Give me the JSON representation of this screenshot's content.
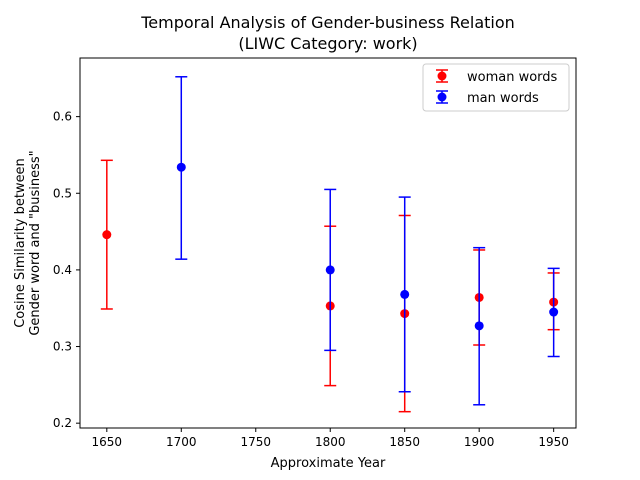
{
  "chart_data": {
    "type": "scatter",
    "title_line1": "Temporal Analysis of Gender-business Relation",
    "title_line2": "(LIWC Category: work)",
    "xlabel": "Approximate Year",
    "ylabel_line1": "Cosine Similarity between",
    "ylabel_line2": "Gender word and \"business\"",
    "xlim": [
      1632,
      1965
    ],
    "ylim": [
      0.1937,
      0.6765
    ],
    "xticks": [
      1650,
      1700,
      1750,
      1800,
      1850,
      1900,
      1950
    ],
    "yticks": [
      0.2,
      0.3,
      0.4,
      0.5,
      0.6
    ],
    "grid": false,
    "legend_position": "top-right",
    "series": [
      {
        "name": "woman words",
        "color": "#ff0000",
        "points": [
          {
            "x": 1650,
            "y": 0.446,
            "ylow": 0.349,
            "yhigh": 0.543
          },
          {
            "x": 1800,
            "y": 0.353,
            "ylow": 0.249,
            "yhigh": 0.457
          },
          {
            "x": 1850,
            "y": 0.343,
            "ylow": 0.215,
            "yhigh": 0.471
          },
          {
            "x": 1900,
            "y": 0.364,
            "ylow": 0.302,
            "yhigh": 0.426
          },
          {
            "x": 1950,
            "y": 0.358,
            "ylow": 0.322,
            "yhigh": 0.396
          }
        ]
      },
      {
        "name": "man words",
        "color": "#0000ff",
        "points": [
          {
            "x": 1700,
            "y": 0.534,
            "ylow": 0.414,
            "yhigh": 0.652
          },
          {
            "x": 1800,
            "y": 0.4,
            "ylow": 0.295,
            "yhigh": 0.505
          },
          {
            "x": 1850,
            "y": 0.368,
            "ylow": 0.241,
            "yhigh": 0.495
          },
          {
            "x": 1900,
            "y": 0.327,
            "ylow": 0.224,
            "yhigh": 0.429
          },
          {
            "x": 1950,
            "y": 0.345,
            "ylow": 0.287,
            "yhigh": 0.402
          }
        ]
      }
    ]
  }
}
